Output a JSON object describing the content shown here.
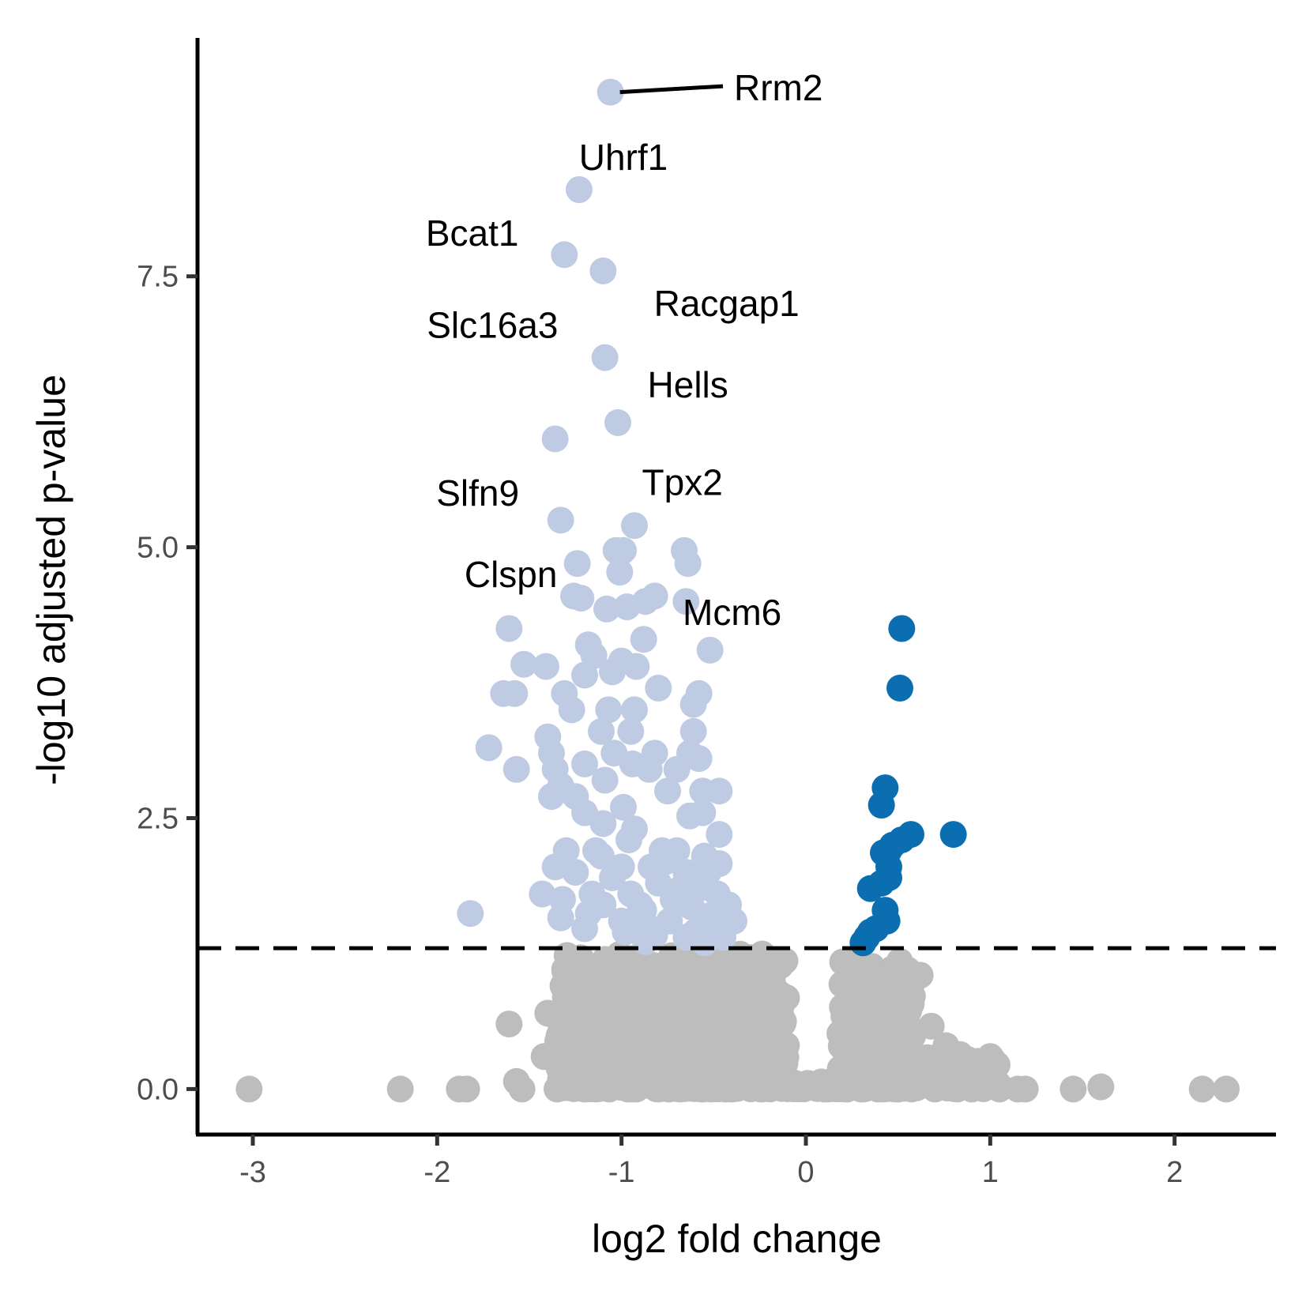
{
  "chart_data": {
    "type": "scatter",
    "xlabel": "log2 fold change",
    "ylabel": "-log10 adjusted p-value",
    "xlim": [
      -3.3,
      2.55
    ],
    "ylim": [
      -0.42,
      9.7
    ],
    "x_ticks": [
      -3,
      -2,
      -1,
      0,
      1,
      2
    ],
    "x_tick_labels": [
      "-3",
      "-2",
      "-1",
      "0",
      "1",
      "2"
    ],
    "y_ticks": [
      0.0,
      2.5,
      5.0,
      7.5
    ],
    "y_tick_labels": [
      "0.0",
      "2.5",
      "5.0",
      "7.5"
    ],
    "significance_threshold": 1.3,
    "grid": false,
    "legend": "none",
    "colors": {
      "down": "#bfcbe3",
      "up": "#0a6eb0",
      "ns": "#bdbdbd",
      "threshold_line": "#000000",
      "axis": "#000000"
    },
    "series": [
      {
        "key": "down",
        "points": [
          [
            -1.06,
            9.2
          ],
          [
            -1.23,
            8.3
          ],
          [
            -1.31,
            7.7
          ],
          [
            -1.1,
            7.55
          ],
          [
            -1.09,
            6.75
          ],
          [
            -1.02,
            6.15
          ],
          [
            -1.36,
            6.0
          ],
          [
            -1.33,
            5.25
          ],
          [
            -0.93,
            5.2
          ],
          [
            -1.03,
            4.97
          ],
          [
            -0.99,
            4.97
          ],
          [
            -0.66,
            4.97
          ],
          [
            -0.64,
            4.85
          ],
          [
            -1.24,
            4.85
          ],
          [
            -1.01,
            4.77
          ],
          [
            -0.82,
            4.55
          ],
          [
            -0.87,
            4.5
          ],
          [
            -1.26,
            4.55
          ],
          [
            -1.22,
            4.53
          ],
          [
            -1.08,
            4.43
          ],
          [
            -0.97,
            4.45
          ],
          [
            -0.65,
            4.5
          ],
          [
            -1.61,
            4.25
          ],
          [
            -0.88,
            4.15
          ],
          [
            -0.52,
            4.05
          ],
          [
            -1.18,
            4.1
          ],
          [
            -1.15,
            4.0
          ],
          [
            -1.53,
            3.92
          ],
          [
            -1.41,
            3.9
          ],
          [
            -1.0,
            3.95
          ],
          [
            -0.92,
            3.9
          ],
          [
            -1.05,
            3.85
          ],
          [
            -0.8,
            3.7
          ],
          [
            -1.2,
            3.82
          ],
          [
            -1.31,
            3.65
          ],
          [
            -1.58,
            3.65
          ],
          [
            -1.64,
            3.65
          ],
          [
            -0.58,
            3.65
          ],
          [
            -0.61,
            3.55
          ],
          [
            -1.27,
            3.5
          ],
          [
            -1.07,
            3.5
          ],
          [
            -0.93,
            3.5
          ],
          [
            -1.11,
            3.3
          ],
          [
            -0.95,
            3.3
          ],
          [
            -0.61,
            3.3
          ],
          [
            -1.4,
            3.25
          ],
          [
            -0.82,
            3.1
          ],
          [
            -1.72,
            3.15
          ],
          [
            -1.38,
            3.1
          ],
          [
            -1.04,
            3.1
          ],
          [
            -0.63,
            3.1
          ],
          [
            -0.58,
            3.05
          ],
          [
            -1.2,
            3.0
          ],
          [
            -0.94,
            3.0
          ],
          [
            -0.85,
            2.95
          ],
          [
            -0.7,
            2.95
          ],
          [
            -1.57,
            2.95
          ],
          [
            -1.36,
            2.95
          ],
          [
            -1.09,
            2.85
          ],
          [
            -1.33,
            2.8
          ],
          [
            -0.75,
            2.75
          ],
          [
            -0.56,
            2.75
          ],
          [
            -0.47,
            2.75
          ],
          [
            -1.25,
            2.7
          ],
          [
            -1.38,
            2.7
          ],
          [
            -0.99,
            2.6
          ],
          [
            -1.2,
            2.55
          ],
          [
            -0.63,
            2.52
          ],
          [
            -0.56,
            2.55
          ],
          [
            -1.1,
            2.45
          ],
          [
            -0.93,
            2.4
          ],
          [
            -0.47,
            2.35
          ],
          [
            -1.3,
            2.2
          ],
          [
            -0.78,
            2.2
          ],
          [
            -0.7,
            2.2
          ],
          [
            -0.55,
            2.15
          ],
          [
            -1.36,
            2.05
          ],
          [
            -1.11,
            2.15
          ],
          [
            -1.0,
            2.05
          ],
          [
            -0.84,
            2.05
          ],
          [
            -0.65,
            2.0
          ],
          [
            -0.53,
            2.0
          ],
          [
            -0.47,
            2.08
          ],
          [
            -1.25,
            2.0
          ],
          [
            -1.05,
            1.95
          ],
          [
            -0.8,
            1.9
          ],
          [
            -0.58,
            1.85
          ],
          [
            -1.16,
            1.8
          ],
          [
            -0.95,
            1.8
          ],
          [
            -0.72,
            1.75
          ],
          [
            -0.48,
            1.8
          ],
          [
            -1.43,
            1.8
          ],
          [
            -1.32,
            1.75
          ],
          [
            -1.1,
            1.7
          ],
          [
            -0.88,
            1.65
          ],
          [
            -0.62,
            1.68
          ],
          [
            -0.42,
            1.7
          ],
          [
            -1.82,
            1.62
          ],
          [
            -1.33,
            1.58
          ],
          [
            -1.0,
            1.55
          ],
          [
            -0.74,
            1.55
          ],
          [
            -0.56,
            1.52
          ],
          [
            -0.39,
            1.55
          ],
          [
            -1.2,
            1.48
          ],
          [
            -0.98,
            1.45
          ],
          [
            -0.82,
            1.42
          ],
          [
            -0.65,
            1.4
          ],
          [
            -0.45,
            1.4
          ],
          [
            -0.87,
            1.36
          ],
          [
            -0.55,
            1.35
          ],
          [
            -1.18,
            1.62
          ],
          [
            -0.9,
            1.7
          ],
          [
            -0.68,
            1.85
          ],
          [
            -0.76,
            2.1
          ],
          [
            -0.96,
            2.3
          ],
          [
            -1.14,
            2.2
          ],
          [
            -0.86,
            1.5
          ],
          [
            -0.52,
            1.6
          ],
          [
            -0.6,
            1.45
          ]
        ]
      },
      {
        "key": "up",
        "points": [
          [
            0.52,
            4.25
          ],
          [
            0.51,
            3.7
          ],
          [
            0.43,
            2.78
          ],
          [
            0.41,
            2.62
          ],
          [
            0.8,
            2.35
          ],
          [
            0.57,
            2.35
          ],
          [
            0.52,
            2.3
          ],
          [
            0.47,
            2.25
          ],
          [
            0.45,
            2.2
          ],
          [
            0.42,
            2.18
          ],
          [
            0.45,
            2.05
          ],
          [
            0.45,
            1.95
          ],
          [
            0.41,
            1.9
          ],
          [
            0.35,
            1.85
          ],
          [
            0.43,
            1.65
          ],
          [
            0.44,
            1.55
          ],
          [
            0.35,
            1.45
          ],
          [
            0.38,
            1.48
          ],
          [
            0.33,
            1.4
          ],
          [
            0.31,
            1.35
          ]
        ]
      },
      {
        "key": "ns",
        "points": [
          [
            -3.02,
            0.0
          ],
          [
            -2.2,
            0.0
          ],
          [
            -1.88,
            0.0
          ],
          [
            -1.84,
            0.0
          ],
          [
            1.45,
            0.0
          ],
          [
            1.6,
            0.02
          ],
          [
            2.15,
            0.0
          ],
          [
            2.28,
            0.0
          ],
          [
            1.19,
            0.0
          ],
          [
            1.0,
            0.3
          ],
          [
            1.15,
            0.0
          ],
          [
            0.62,
            1.05
          ],
          [
            0.68,
            0.58
          ],
          [
            0.76,
            0.4
          ],
          [
            0.82,
            0.2
          ],
          [
            -1.61,
            0.6
          ],
          [
            -1.57,
            0.07
          ],
          [
            -1.4,
            0.7
          ],
          [
            -1.42,
            0.3
          ],
          [
            -1.54,
            0.0
          ],
          [
            -1.35,
            0.0
          ],
          [
            -1.2,
            0.0
          ],
          [
            -0.8,
            0.0
          ],
          [
            -0.4,
            0.0
          ],
          [
            0.1,
            0.0
          ],
          [
            0.3,
            0.0
          ],
          [
            0.5,
            0.0
          ],
          [
            0.7,
            0.0
          ],
          [
            0.9,
            0.0
          ],
          [
            1.05,
            0.0
          ]
        ]
      }
    ],
    "ns_regions": [
      {
        "x": [
          -1.35,
          -0.1
        ],
        "y": [
          0.0,
          1.25
        ],
        "n": 700
      },
      {
        "x": [
          0.18,
          0.58
        ],
        "y": [
          0.0,
          1.2
        ],
        "n": 200
      },
      {
        "x": [
          0.55,
          1.05
        ],
        "y": [
          0.0,
          0.35
        ],
        "n": 70
      },
      {
        "x": [
          -0.1,
          0.2
        ],
        "y": [
          0.0,
          0.08
        ],
        "n": 45
      }
    ],
    "annotations": [
      {
        "label": "Rrm2",
        "x": -0.39,
        "y": 9.24,
        "point_x": -1.06,
        "point_y": 9.2,
        "leader": true
      },
      {
        "label": "Uhrf1",
        "x": -0.99,
        "y": 8.6
      },
      {
        "label": "Bcat1",
        "x": -1.81,
        "y": 7.9
      },
      {
        "label": "Racgap1",
        "x": -0.43,
        "y": 7.25
      },
      {
        "label": "Slc16a3",
        "x": -1.7,
        "y": 7.05
      },
      {
        "label": "Hells",
        "x": -0.64,
        "y": 6.5
      },
      {
        "label": "Slfn9",
        "x": -1.78,
        "y": 5.5
      },
      {
        "label": "Tpx2",
        "x": -0.67,
        "y": 5.6
      },
      {
        "label": "Clspn",
        "x": -1.6,
        "y": 4.75
      },
      {
        "label": "Mcm6",
        "x": -0.4,
        "y": 4.4
      }
    ]
  }
}
